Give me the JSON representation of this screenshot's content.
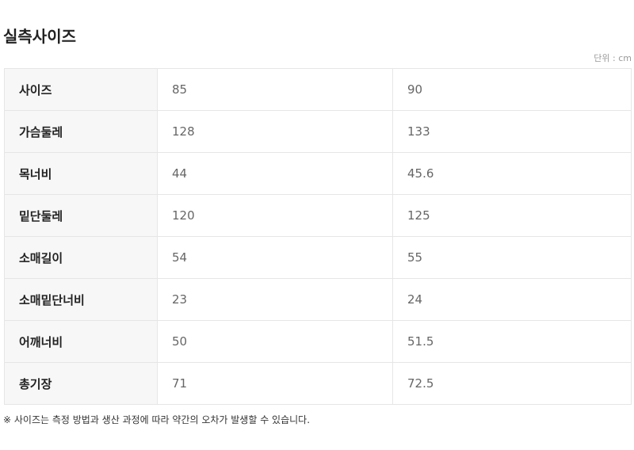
{
  "title": "실측사이즈",
  "unit": "단위 : cm",
  "rows": [
    {
      "label": "사이즈",
      "values": [
        "85",
        "90"
      ]
    },
    {
      "label": "가슴둘레",
      "values": [
        "128",
        "133"
      ]
    },
    {
      "label": "목너비",
      "values": [
        "44",
        "45.6"
      ]
    },
    {
      "label": "밑단둘레",
      "values": [
        "120",
        "125"
      ]
    },
    {
      "label": "소매길이",
      "values": [
        "54",
        "55"
      ]
    },
    {
      "label": "소매밑단너비",
      "values": [
        "23",
        "24"
      ]
    },
    {
      "label": "어깨너비",
      "values": [
        "50",
        "51.5"
      ]
    },
    {
      "label": "총기장",
      "values": [
        "71",
        "72.5"
      ]
    }
  ],
  "note": "※ 사이즈는 측정 방법과 생산 과정에 따라 약간의 오차가 발생할 수 있습니다."
}
